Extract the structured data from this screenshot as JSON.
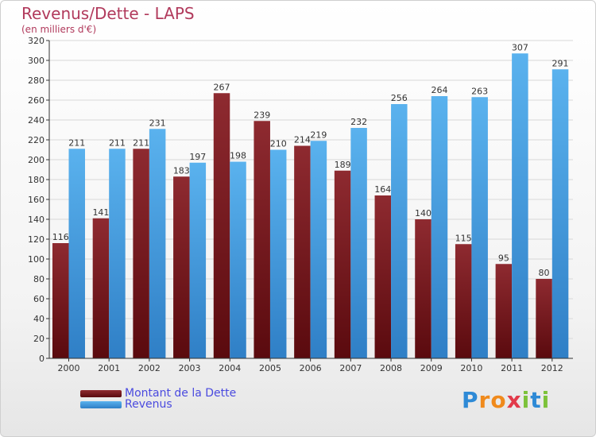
{
  "header": {
    "title": "Revenus/Dette - LAPS",
    "subtitle": "(en milliers d'€)"
  },
  "logo": {
    "letters": [
      {
        "ch": "P",
        "color": "#2e8ad6"
      },
      {
        "ch": "r",
        "color": "#f08a1c"
      },
      {
        "ch": "o",
        "color": "#f08a1c"
      },
      {
        "ch": "x",
        "color": "#e23a4a"
      },
      {
        "ch": "i",
        "color": "#7cc23a"
      },
      {
        "ch": "t",
        "color": "#2e8ad6"
      },
      {
        "ch": "i",
        "color": "#7cc23a"
      }
    ]
  },
  "colors": {
    "dette": "#8b1a22",
    "revenus": "#4aa3e6",
    "grid": "#d8d8d8",
    "axis": "#333333"
  },
  "chart_data": {
    "type": "bar",
    "title": "Revenus/Dette - LAPS",
    "subtitle": "(en milliers d'€)",
    "categories": [
      "2000",
      "2001",
      "2002",
      "2003",
      "2004",
      "2005",
      "2006",
      "2007",
      "2008",
      "2009",
      "2010",
      "2011",
      "2012"
    ],
    "series": [
      {
        "name": "Montant de la Dette",
        "values": [
          116,
          141,
          211,
          183,
          267,
          239,
          214,
          189,
          164,
          140,
          115,
          95,
          80
        ]
      },
      {
        "name": "Revenus",
        "values": [
          211,
          211,
          231,
          197,
          198,
          210,
          219,
          232,
          256,
          264,
          263,
          307,
          291
        ]
      }
    ],
    "ylim": [
      0,
      320
    ],
    "yticks": [
      0,
      20,
      40,
      60,
      80,
      100,
      120,
      140,
      160,
      180,
      200,
      220,
      240,
      260,
      280,
      300,
      320
    ],
    "grid": true,
    "legend_position": "bottom-left"
  }
}
